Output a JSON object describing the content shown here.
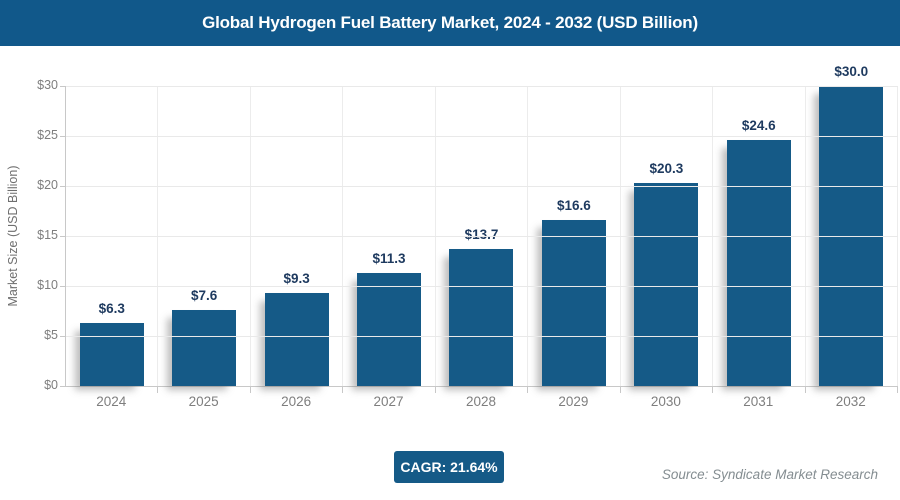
{
  "header": {
    "title": "Global Hydrogen Fuel Battery Market, 2024 - 2032 (USD Billion)"
  },
  "chart_data": {
    "type": "bar",
    "title": "Global Hydrogen Fuel Battery Market, 2024 - 2032 (USD Billion)",
    "categories": [
      "2024",
      "2025",
      "2026",
      "2027",
      "2028",
      "2029",
      "2030",
      "2031",
      "2032"
    ],
    "values": [
      6.3,
      7.6,
      9.3,
      11.3,
      13.7,
      16.6,
      20.3,
      24.6,
      30.0
    ],
    "data_labels": [
      "$6.3",
      "$7.6",
      "$9.3",
      "$11.3",
      "$13.7",
      "$16.6",
      "$20.3",
      "$24.6",
      "$30.0"
    ],
    "xlabel": "",
    "ylabel": "Market Size (USD Billion)",
    "ylim": [
      0,
      30
    ],
    "ytick_step": 5,
    "ytick_labels": [
      "$0",
      "$5",
      "$10",
      "$15",
      "$20",
      "$25",
      "$30"
    ],
    "grid": "on",
    "legend": "none"
  },
  "footer": {
    "cagr_badge": "CAGR: 21.64%",
    "source": "Source: Syndicate Market Research"
  },
  "colors": {
    "header_bg": "#11588a",
    "bar": "#155a87",
    "bar_label": "#1e3a5f",
    "axis_text": "#7e7e7e",
    "grid_line": "#e9e9e9",
    "vgrid_line": "#ececec",
    "axis_line": "#c8c8c8",
    "badge_bg": "#155a87",
    "title_text": "#ffffff"
  }
}
